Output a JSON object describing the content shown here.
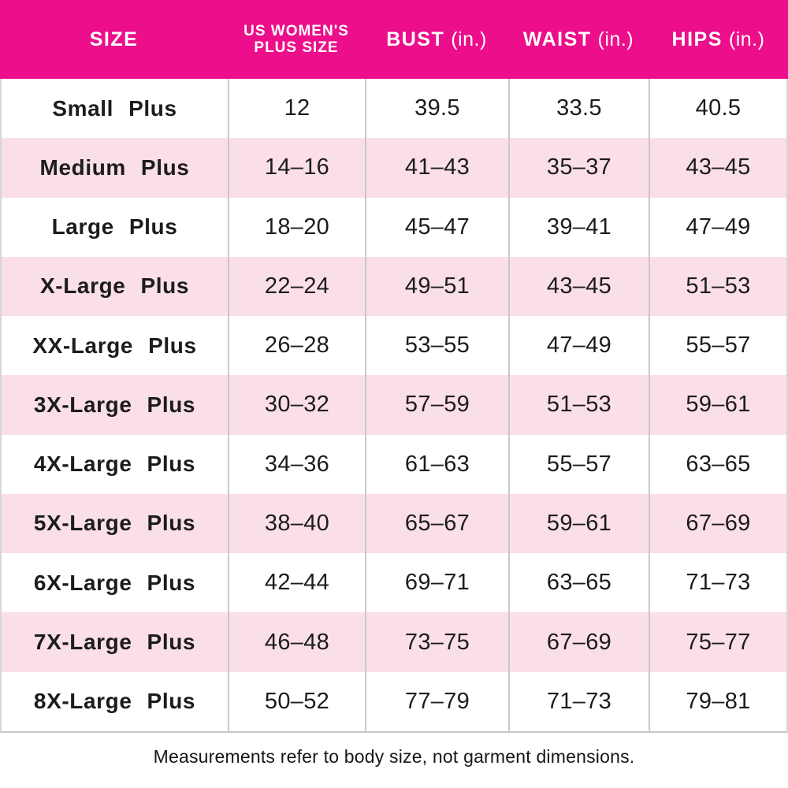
{
  "colors": {
    "header_bg": "#EC0E8A",
    "row_alt_bg": "#FADEE9",
    "grid_line": "#C9C9C9",
    "text": "#1C1C1C",
    "header_text": "#FFFFFF"
  },
  "header": {
    "size_label": "SIZE",
    "us_plus_line1": "US WOMEN'S",
    "us_plus_line2": "PLUS SIZE",
    "bust_label": "BUST",
    "waist_label": "WAIST",
    "hips_label": "HIPS",
    "unit_label": "(in.)"
  },
  "footnote": "Measurements refer to body size, not garment dimensions.",
  "chart_data": {
    "type": "table",
    "title": "Women's plus size chart",
    "columns": [
      "SIZE",
      "US WOMEN'S PLUS SIZE",
      "BUST (in.)",
      "WAIST (in.)",
      "HIPS (in.)"
    ],
    "rows": [
      [
        "Small Plus",
        "12",
        "39.5",
        "33.5",
        "40.5"
      ],
      [
        "Medium Plus",
        "14–16",
        "41–43",
        "35–37",
        "43–45"
      ],
      [
        "Large Plus",
        "18–20",
        "45–47",
        "39–41",
        "47–49"
      ],
      [
        "X-Large Plus",
        "22–24",
        "49–51",
        "43–45",
        "51–53"
      ],
      [
        "XX-Large Plus",
        "26–28",
        "53–55",
        "47–49",
        "55–57"
      ],
      [
        "3X-Large Plus",
        "30–32",
        "57–59",
        "51–53",
        "59–61"
      ],
      [
        "4X-Large Plus",
        "34–36",
        "61–63",
        "55–57",
        "63–65"
      ],
      [
        "5X-Large Plus",
        "38–40",
        "65–67",
        "59–61",
        "67–69"
      ],
      [
        "6X-Large Plus",
        "42–44",
        "69–71",
        "63–65",
        "71–73"
      ],
      [
        "7X-Large Plus",
        "46–48",
        "73–75",
        "67–69",
        "75–77"
      ],
      [
        "8X-Large Plus",
        "50–52",
        "77–79",
        "71–73",
        "79–81"
      ]
    ],
    "footnote": "Measurements refer to body size, not garment dimensions.",
    "layout": {
      "row_striping": "alternating white / light pink",
      "header_style": "solid magenta band, white text",
      "column_separators": "vertical gray lines in body only"
    }
  }
}
